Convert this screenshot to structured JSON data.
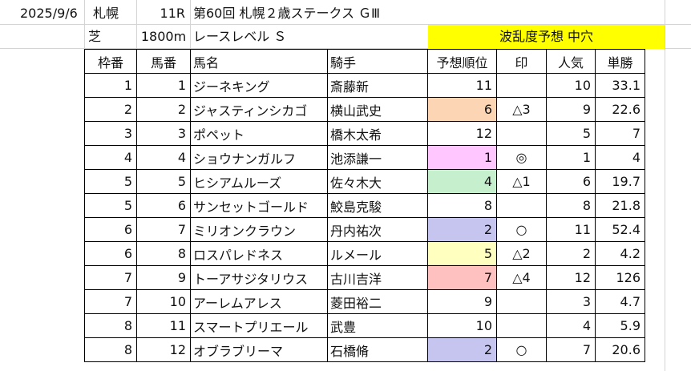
{
  "header": {
    "date": "2025/9/6",
    "venue": "札幌",
    "race_no": "11R",
    "race_name": "第60回 札幌２歳ステークス ＧⅢ",
    "surface": "芝",
    "distance": "1800m",
    "race_level": "レースレベル Ｓ",
    "forecast_label": "波乱度予想 中穴",
    "forecast_color": "#ffff00"
  },
  "table": {
    "columns": [
      "枠番",
      "馬番",
      "馬名",
      "騎手",
      "予想順位",
      "印",
      "人気",
      "単勝"
    ],
    "rows": [
      {
        "frame": "1",
        "num": "1",
        "horse": "ジーネキング",
        "jockey": "斎藤新",
        "rank": "11",
        "mark": "",
        "pop": "10",
        "odds": "33.1",
        "hl": ""
      },
      {
        "frame": "2",
        "num": "2",
        "horse": "ジャスティンシカゴ",
        "jockey": "横山武史",
        "rank": "6",
        "mark": "△3",
        "pop": "9",
        "odds": "22.6",
        "hl": "#fcd5b4"
      },
      {
        "frame": "3",
        "num": "3",
        "horse": "ポペット",
        "jockey": "橋木太希",
        "rank": "12",
        "mark": "",
        "pop": "5",
        "odds": "7",
        "hl": ""
      },
      {
        "frame": "4",
        "num": "4",
        "horse": "ショウナンガルフ",
        "jockey": "池添謙一",
        "rank": "1",
        "mark": "◎",
        "pop": "1",
        "odds": "4",
        "hl": "#ffc6ff"
      },
      {
        "frame": "5",
        "num": "5",
        "horse": "ヒシアムルーズ",
        "jockey": "佐々木大",
        "rank": "4",
        "mark": "△1",
        "pop": "6",
        "odds": "19.7",
        "hl": "#c6efce"
      },
      {
        "frame": "5",
        "num": "6",
        "horse": "サンセットゴールド",
        "jockey": "鮫島克駿",
        "rank": "8",
        "mark": "",
        "pop": "8",
        "odds": "21.8",
        "hl": ""
      },
      {
        "frame": "6",
        "num": "7",
        "horse": "ミリオンクラウン",
        "jockey": "丹内祐次",
        "rank": "2",
        "mark": "○",
        "pop": "11",
        "odds": "52.4",
        "hl": "#c5c5f0"
      },
      {
        "frame": "6",
        "num": "8",
        "horse": "ロスパレドネス",
        "jockey": "ルメール",
        "rank": "5",
        "mark": "△2",
        "pop": "2",
        "odds": "4.2",
        "hl": "#ffffc0"
      },
      {
        "frame": "7",
        "num": "9",
        "horse": "トーアサジタリウス",
        "jockey": "古川吉洋",
        "rank": "7",
        "mark": "△4",
        "pop": "12",
        "odds": "126",
        "hl": "#ffc0c0"
      },
      {
        "frame": "7",
        "num": "10",
        "horse": "アーレムアレス",
        "jockey": "菱田裕二",
        "rank": "9",
        "mark": "",
        "pop": "3",
        "odds": "4.7",
        "hl": ""
      },
      {
        "frame": "8",
        "num": "11",
        "horse": "スマートプリエール",
        "jockey": "武豊",
        "rank": "10",
        "mark": "",
        "pop": "4",
        "odds": "5.9",
        "hl": ""
      },
      {
        "frame": "8",
        "num": "12",
        "horse": "オブラブリーマ",
        "jockey": "石橋脩",
        "rank": "2",
        "mark": "○",
        "pop": "7",
        "odds": "20.6",
        "hl": "#c5c5f0"
      }
    ]
  }
}
